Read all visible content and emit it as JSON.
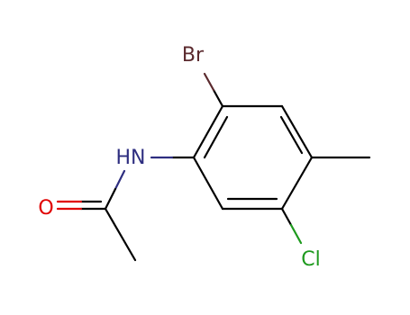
{
  "atoms": [
    {
      "label": "Br",
      "color": "#5b2a2e"
    },
    {
      "label": "HN",
      "color": "#2e2e80"
    },
    {
      "label": "O",
      "color": "#e00000"
    },
    {
      "label": "Cl",
      "color": "#1e9a1e"
    }
  ]
}
